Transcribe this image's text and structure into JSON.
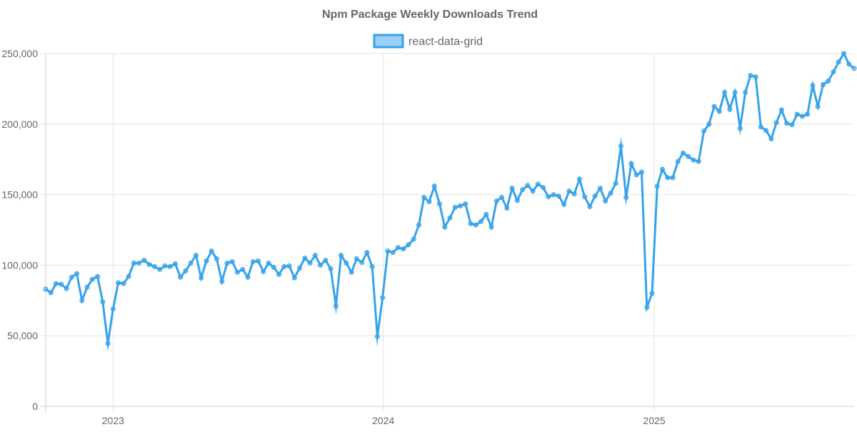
{
  "chart_data": {
    "type": "line",
    "title": "Npm Package Weekly Downloads Trend",
    "xlabel": "",
    "ylabel": "",
    "ylim": [
      0,
      250000
    ],
    "yticks": [
      0,
      50000,
      100000,
      150000,
      200000,
      250000
    ],
    "ytick_labels": [
      "0",
      "50,000",
      "100,000",
      "150,000",
      "200,000",
      "250,000"
    ],
    "xtick_labels": [
      "2023",
      "2024",
      "2025"
    ],
    "xtick_dates": [
      "2023-01-01",
      "2024-01-01",
      "2025-01-01"
    ],
    "x_start": "2022-10-02",
    "x_step_days": 7,
    "grid": true,
    "legend_position": "top",
    "colors": {
      "line": "#36a2eb",
      "fill": "#9ad0f5",
      "grid": "#e6e6e6",
      "text": "#666666"
    },
    "series": [
      {
        "name": "react-data-grid",
        "values": [
          83000,
          80500,
          87000,
          86500,
          83500,
          91500,
          94000,
          75000,
          84500,
          90000,
          92000,
          74000,
          44500,
          69000,
          87500,
          87000,
          92000,
          101500,
          101500,
          103500,
          100500,
          99000,
          97000,
          99500,
          99000,
          101000,
          91500,
          96000,
          101500,
          107000,
          91000,
          103000,
          110000,
          104500,
          88500,
          101500,
          102500,
          95000,
          97000,
          91500,
          102500,
          103000,
          95500,
          101500,
          98500,
          93500,
          99000,
          99500,
          91000,
          98000,
          105000,
          101500,
          107000,
          100000,
          103500,
          97500,
          71000,
          107000,
          101500,
          95000,
          104500,
          102000,
          109000,
          99000,
          49500,
          77000,
          110000,
          109000,
          112500,
          111500,
          114500,
          118500,
          128500,
          148000,
          145000,
          156000,
          143500,
          127000,
          133500,
          141000,
          142000,
          143500,
          129500,
          128500,
          131000,
          136000,
          127000,
          145500,
          148000,
          140500,
          154500,
          146000,
          153500,
          156500,
          152500,
          157500,
          155000,
          148500,
          150000,
          149000,
          143000,
          152500,
          150500,
          161000,
          148500,
          141500,
          149000,
          154500,
          145500,
          151000,
          158000,
          184500,
          148000,
          172000,
          164000,
          166000,
          70000,
          80000,
          156000,
          168000,
          162000,
          162000,
          173500,
          179500,
          177000,
          174500,
          173500,
          195000,
          200000,
          212500,
          209000,
          222500,
          210500,
          222500,
          197000,
          222500,
          234500,
          233500,
          198000,
          195500,
          189500,
          201000,
          210000,
          200500,
          199500,
          207000,
          205500,
          207000,
          227500,
          212500,
          228000,
          230500,
          237000,
          244000,
          250000,
          242500,
          239500
        ]
      }
    ]
  }
}
